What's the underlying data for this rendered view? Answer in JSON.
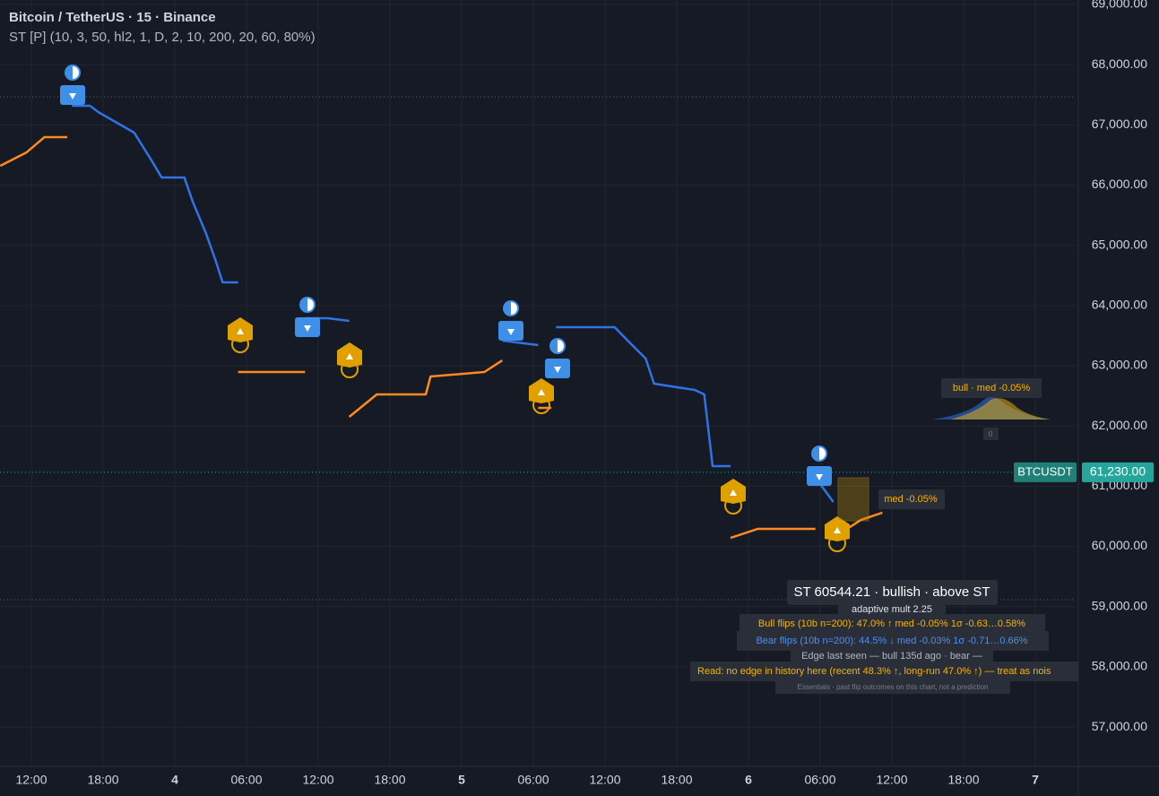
{
  "chart_data": {
    "type": "line",
    "title": "Bitcoin / TetherUS · 15 · Binance",
    "subtitle": "ST [P] (10, 3, 50, hl2, 1, D, 2, 10, 200, 20, 60, 80%)",
    "xlim": [
      9.375,
      99.375
    ],
    "xticks": [
      {
        "value": 12,
        "label": "12:00"
      },
      {
        "value": 18,
        "label": "18:00"
      },
      {
        "value": 24,
        "label": "4"
      },
      {
        "value": 30,
        "label": "06:00"
      },
      {
        "value": 36,
        "label": "12:00"
      },
      {
        "value": 42,
        "label": "18:00"
      },
      {
        "value": 48,
        "label": "5"
      },
      {
        "value": 54,
        "label": "06:00"
      },
      {
        "value": 60,
        "label": "12:00"
      },
      {
        "value": 66,
        "label": "18:00"
      },
      {
        "value": 72,
        "label": "6"
      },
      {
        "value": 78,
        "label": "06:00"
      },
      {
        "value": 84,
        "label": "12:00"
      },
      {
        "value": 90,
        "label": "18:00"
      },
      {
        "value": 96,
        "label": "7"
      }
    ],
    "ylim": [
      56346,
      69074
    ],
    "yticks": [
      {
        "value": 57000,
        "label": "57,000.00"
      },
      {
        "value": 58000,
        "label": "58,000.00"
      },
      {
        "value": 59000,
        "label": "59,000.00"
      },
      {
        "value": 60000,
        "label": "60,000.00"
      },
      {
        "value": 61000,
        "label": "61,000.00"
      },
      {
        "value": 62000,
        "label": "62,000.00"
      },
      {
        "value": 63000,
        "label": "63,000.00"
      },
      {
        "value": 64000,
        "label": "64,000.00"
      },
      {
        "value": 65000,
        "label": "65,000.00"
      },
      {
        "value": 66000,
        "label": "66,000.00"
      },
      {
        "value": 67000,
        "label": "67,000.00"
      },
      {
        "value": 68000,
        "label": "68,000.00"
      },
      {
        "value": 69000,
        "label": "69,000.00"
      }
    ],
    "grid": true,
    "series": [
      {
        "color": "#ff8a1f",
        "x": [
          9.4,
          11.6,
          13.1,
          15.0,
          null,
          29.3,
          34.9,
          null,
          38.6,
          40.9,
          45.0,
          45.4,
          49.9,
          51.4,
          null,
          54.4,
          55.5,
          null,
          70.5,
          72.8,
          77.6,
          null,
          79.1,
          81.4,
          83.2
        ],
        "values": [
          66320,
          66544,
          66797,
          66797,
          null,
          62896,
          62896,
          null,
          62152,
          62524,
          62524,
          62821,
          62896,
          63089,
          null,
          62300,
          62300,
          null,
          60142,
          60291,
          60291,
          null,
          60142,
          60439,
          60559
        ]
      },
      {
        "color": "#2f73e6",
        "x": [
          15.4,
          16.9,
          17.6,
          20.6,
          22.1,
          22.9,
          24.8,
          25.5,
          26.6,
          27.4,
          28.0,
          29.3,
          null,
          34.9,
          36.8,
          38.6,
          null,
          51.4,
          54.4,
          null,
          55.9,
          60.8,
          61.9,
          63.4,
          64.1,
          67.5,
          68.3,
          69.0,
          70.5,
          null,
          78.0,
          79.1
        ],
        "values": [
          67318,
          67318,
          67213,
          66871,
          66395,
          66127,
          66127,
          65725,
          65204,
          64757,
          64385,
          64385,
          null,
          63789,
          63789,
          63745,
          null,
          63417,
          63343,
          null,
          63640,
          63640,
          63417,
          63119,
          62702,
          62598,
          62524,
          61333,
          61333,
          null,
          61035,
          60737
        ]
      }
    ],
    "price_tag": {
      "symbol": "BTCUSDT",
      "value": 61230,
      "label": "61,230.00"
    },
    "annotations": {
      "status": "ST 60544.21 · bullish · above ST",
      "mult": "adaptive mult 2.25",
      "bull_flips": "Bull flips (10b n=200):  47.0% ↑  med -0.05%  1σ -0.63…0.58%",
      "bear_flips": "Bear flips (10b n=200):  44.5% ↓  med -0.03%  1σ -0.71…0.66%",
      "edge": "Edge last seen — bull 135d ago · bear —",
      "read": "Read: no edge in history here (recent 48.3% ↑, long-run 47.0% ↑) — treat as nois",
      "essentials": "Essentials · past flip outcomes on this chart, not a prediction",
      "dist_label": "bull · med -0.05%",
      "dist_zero": "0",
      "med_label": "med -0.05%"
    }
  }
}
